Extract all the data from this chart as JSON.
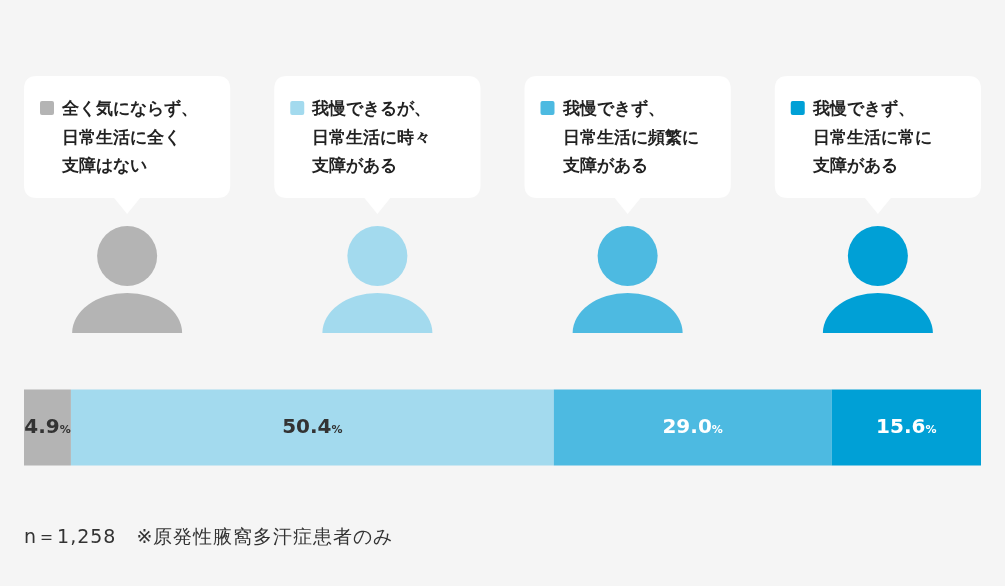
{
  "chart_data": {
    "type": "bar",
    "orientation": "horizontal",
    "stacked": true,
    "categories": [
      null
    ],
    "series": [
      {
        "name": "全く気にならず、日常生活に全く支障はない",
        "color": "#b4b4b4",
        "values": [
          4.9
        ],
        "value_labels": [
          "4.9%"
        ]
      },
      {
        "name": "我慢できるが、日常生活に時々支障がある",
        "color": "#a3daee",
        "values": [
          50.4
        ],
        "value_labels": [
          "50.4%"
        ]
      },
      {
        "name": "我慢できず、日常生活に頻繁に支障がある",
        "color": "#4dbae1",
        "values": [
          29.0
        ],
        "value_labels": [
          "29.0%"
        ]
      },
      {
        "name": "我慢できず、日常生活に常に支障がある",
        "color": "#00a0d6",
        "values": [
          15.6
        ],
        "value_labels": [
          "15.6%"
        ]
      }
    ],
    "legend": "top",
    "annotations": [
      "n＝1,258　※原発性腋窩多汗症患者のみ"
    ]
  }
}
